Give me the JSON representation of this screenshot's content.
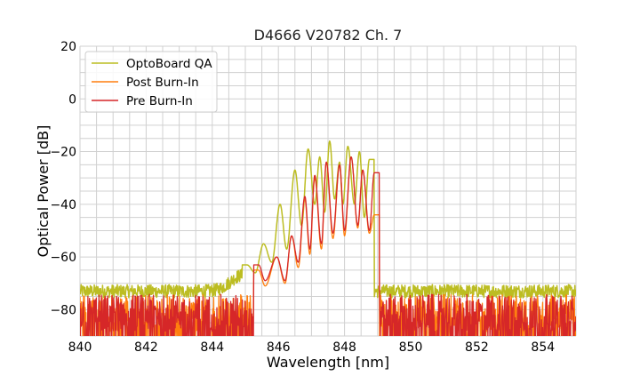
{
  "chart_data": {
    "type": "line",
    "title": "D4666 V20782 Ch. 7",
    "xlabel": "Wavelength [nm]",
    "ylabel": "Optical Power [dB]",
    "xlim": [
      840,
      855
    ],
    "ylim": [
      -90,
      20
    ],
    "xticks": [
      840,
      842,
      844,
      846,
      848,
      850,
      852,
      854
    ],
    "yticks": [
      -80,
      -60,
      -40,
      -20,
      0,
      20
    ],
    "grid": true,
    "grid_step": {
      "x": 0.5,
      "y": 5
    },
    "legend_position": "top-left",
    "noise_floor_db": -80,
    "series": [
      {
        "name": "OptoBoard QA",
        "color": "#bcbd22",
        "peaks": [
          {
            "x": 845.05,
            "y": -63
          },
          {
            "x": 845.55,
            "y": -55
          },
          {
            "x": 846.05,
            "y": -40
          },
          {
            "x": 846.5,
            "y": -27
          },
          {
            "x": 846.9,
            "y": -19
          },
          {
            "x": 847.25,
            "y": -22
          },
          {
            "x": 847.55,
            "y": -16
          },
          {
            "x": 847.85,
            "y": -24
          },
          {
            "x": 848.1,
            "y": -18
          },
          {
            "x": 848.45,
            "y": -20
          },
          {
            "x": 848.75,
            "y": -23
          }
        ],
        "dips": [
          {
            "x": 845.3,
            "y": -66
          },
          {
            "x": 845.8,
            "y": -62
          },
          {
            "x": 846.25,
            "y": -57
          },
          {
            "x": 846.7,
            "y": -48
          },
          {
            "x": 847.1,
            "y": -40
          },
          {
            "x": 847.4,
            "y": -43
          },
          {
            "x": 847.7,
            "y": -38
          },
          {
            "x": 847.95,
            "y": -40
          },
          {
            "x": 848.3,
            "y": -40
          },
          {
            "x": 848.6,
            "y": -45
          }
        ]
      },
      {
        "name": "Post Burn-In",
        "color": "#ff7f0e",
        "peaks": [
          {
            "x": 845.4,
            "y": -65
          },
          {
            "x": 845.95,
            "y": -60
          },
          {
            "x": 846.4,
            "y": -52
          },
          {
            "x": 846.8,
            "y": -38
          },
          {
            "x": 847.1,
            "y": -30
          },
          {
            "x": 847.45,
            "y": -24
          },
          {
            "x": 847.85,
            "y": -25
          },
          {
            "x": 848.2,
            "y": -22
          },
          {
            "x": 848.55,
            "y": -27
          },
          {
            "x": 848.9,
            "y": -44
          }
        ],
        "dips": [
          {
            "x": 845.6,
            "y": -71
          },
          {
            "x": 846.2,
            "y": -70
          },
          {
            "x": 846.6,
            "y": -64
          },
          {
            "x": 846.95,
            "y": -59
          },
          {
            "x": 847.3,
            "y": -57
          },
          {
            "x": 847.65,
            "y": -53
          },
          {
            "x": 848.0,
            "y": -52
          },
          {
            "x": 848.4,
            "y": -49
          },
          {
            "x": 848.75,
            "y": -51
          }
        ]
      },
      {
        "name": "Pre Burn-In",
        "color": "#d62728",
        "peaks": [
          {
            "x": 845.4,
            "y": -63
          },
          {
            "x": 845.95,
            "y": -60
          },
          {
            "x": 846.4,
            "y": -52
          },
          {
            "x": 846.8,
            "y": -37
          },
          {
            "x": 847.1,
            "y": -29
          },
          {
            "x": 847.45,
            "y": -24
          },
          {
            "x": 847.85,
            "y": -25
          },
          {
            "x": 848.2,
            "y": -22
          },
          {
            "x": 848.55,
            "y": -27
          },
          {
            "x": 848.9,
            "y": -28
          }
        ],
        "dips": [
          {
            "x": 845.6,
            "y": -69
          },
          {
            "x": 846.2,
            "y": -69
          },
          {
            "x": 846.6,
            "y": -62
          },
          {
            "x": 846.95,
            "y": -57
          },
          {
            "x": 847.3,
            "y": -55
          },
          {
            "x": 847.65,
            "y": -51
          },
          {
            "x": 848.0,
            "y": -50
          },
          {
            "x": 848.4,
            "y": -48
          },
          {
            "x": 848.75,
            "y": -50
          }
        ]
      }
    ]
  }
}
